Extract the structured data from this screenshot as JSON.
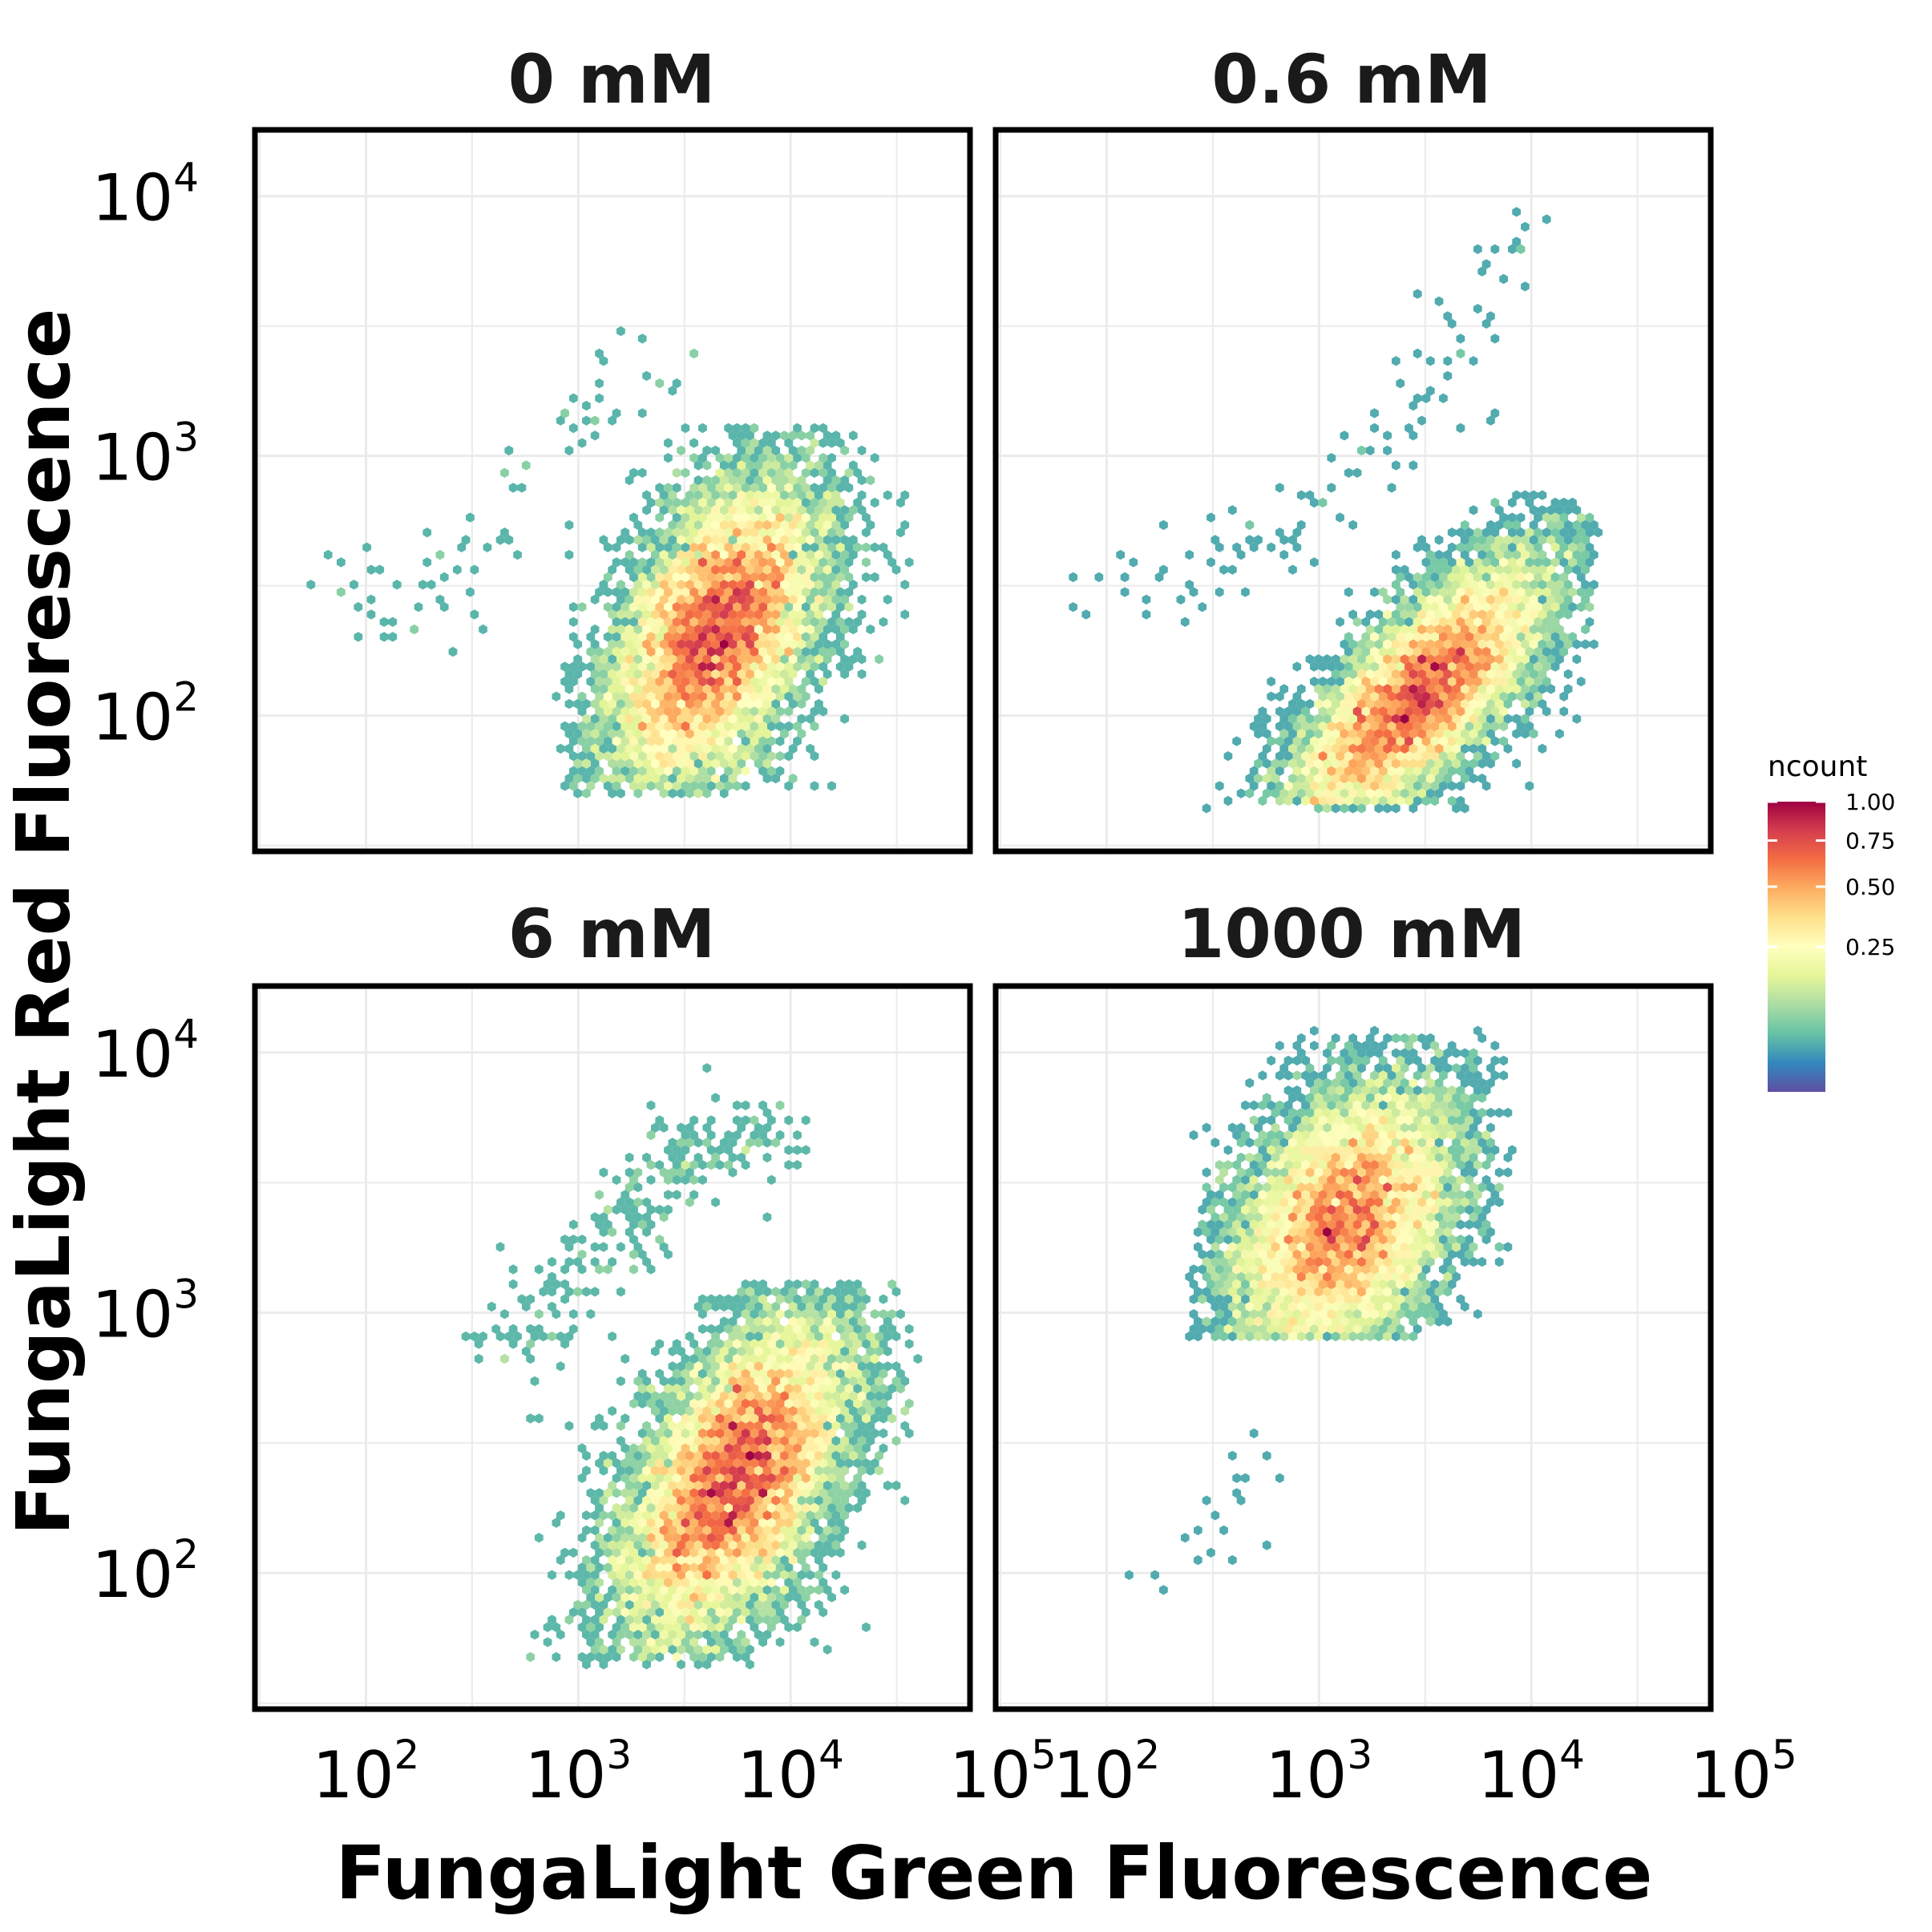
{
  "chart_data": [
    {
      "type": "heatmap",
      "title": "0 mM",
      "x_scale": "log10",
      "y_scale": "log10",
      "xlim": [
        30,
        70000
      ],
      "ylim": [
        30,
        18000
      ],
      "main_population": {
        "center": [
          4500,
          210
        ],
        "spread": [
          0.35,
          0.2
        ],
        "angle_deg": 55,
        "extent": [
          [
            800,
            50
          ],
          [
            40000,
            1300
          ]
        ]
      },
      "secondary_population": {
        "description": "sparse dead-cell arm",
        "path": [
          [
            70,
            250
          ],
          [
            300,
            350
          ],
          [
            1000,
            1300
          ],
          [
            3000,
            2600
          ]
        ],
        "count": 80
      },
      "grid": true
    },
    {
      "type": "heatmap",
      "title": "0.6 mM",
      "x_scale": "log10",
      "y_scale": "log10",
      "xlim": [
        30,
        70000
      ],
      "ylim": [
        30,
        18000
      ],
      "main_population": {
        "center": [
          3000,
          120
        ],
        "spread": [
          0.4,
          0.15
        ],
        "angle_deg": 40,
        "extent": [
          [
            50,
            45
          ],
          [
            20000,
            700
          ]
        ]
      },
      "secondary_population": {
        "description": "sparse upper arm",
        "path": [
          [
            100,
            300
          ],
          [
            500,
            400
          ],
          [
            3000,
            1500
          ],
          [
            8000,
            7000
          ]
        ],
        "count": 110
      },
      "grid": true
    },
    {
      "type": "heatmap",
      "title": "6 mM",
      "x_scale": "log10",
      "y_scale": "log10",
      "xlim": [
        30,
        70000
      ],
      "ylim": [
        30,
        18000
      ],
      "main_population": {
        "center": [
          5500,
          230
        ],
        "spread": [
          0.38,
          0.2
        ],
        "angle_deg": 52,
        "extent": [
          [
            300,
            45
          ],
          [
            40000,
            1300
          ]
        ]
      },
      "secondary_population": {
        "description": "dense upper arm",
        "path": [
          [
            400,
            700
          ],
          [
            1500,
            1800
          ],
          [
            3000,
            4000
          ],
          [
            10000,
            5000
          ]
        ],
        "count": 260
      },
      "grid": true
    },
    {
      "type": "heatmap",
      "title": "1000 mM",
      "x_scale": "log10",
      "y_scale": "log10",
      "xlim": [
        30,
        70000
      ],
      "ylim": [
        30,
        18000
      ],
      "main_population": {
        "center": [
          1300,
          2200
        ],
        "spread": [
          0.32,
          0.22
        ],
        "angle_deg": 45,
        "extent": [
          [
            250,
            800
          ],
          [
            8000,
            12000
          ]
        ]
      },
      "secondary_population": {
        "description": "sparse low tail",
        "path": [
          [
            400,
            300
          ],
          [
            600,
            150
          ],
          [
            100,
            80
          ]
        ],
        "count": 20
      },
      "grid": true
    }
  ],
  "x_axis": {
    "title": "FungaLight Green Fluorescence",
    "ticks": [
      {
        "base": "10",
        "exp": "2",
        "value": 100
      },
      {
        "base": "10",
        "exp": "3",
        "value": 1000
      },
      {
        "base": "10",
        "exp": "4",
        "value": 10000
      },
      {
        "base": "10",
        "exp": "5",
        "value": 100000
      }
    ]
  },
  "y_axis": {
    "title": "FungaLight Red Fluorescence",
    "ticks": [
      {
        "base": "10",
        "exp": "2",
        "value": 100
      },
      {
        "base": "10",
        "exp": "3",
        "value": 1000
      },
      {
        "base": "10",
        "exp": "4",
        "value": 10000
      }
    ]
  },
  "legend": {
    "title": "ncount",
    "ticks": [
      "1.00",
      "0.75",
      "0.50",
      "0.25"
    ],
    "tick_values": [
      1.0,
      0.75,
      0.5,
      0.25
    ],
    "colormap": "Spectral (reversed)",
    "placement": "right"
  }
}
